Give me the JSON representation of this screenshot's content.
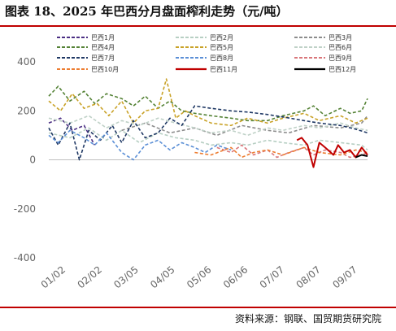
{
  "title": "图表 18、2025 年巴西分月盘面榨利走势（元/吨）",
  "source": "资料来源：钢联、国贸期货研究院",
  "chart_data": {
    "type": "line",
    "y_ticks": [
      400,
      200,
      0,
      -200,
      -400
    ],
    "ylim": [
      -400,
      400
    ],
    "x_ticks": [
      "01/02",
      "02/02",
      "03/05",
      "04/05",
      "05/06",
      "06/06",
      "07/07",
      "08/07",
      "09/07"
    ],
    "x_range": [
      "01/02",
      "09/30"
    ],
    "legend_placement": "top",
    "series": [
      {
        "name": "巴西1月",
        "color": "#4b2e83",
        "dash": "dash",
        "x": [
          "01/02",
          "01/12",
          "01/22",
          "02/01",
          "02/10"
        ],
        "values": [
          150,
          170,
          120,
          140,
          60
        ]
      },
      {
        "name": "巴西2月",
        "color": "#b7cfc3",
        "dash": "dash",
        "x": [
          "01/02",
          "01/20",
          "02/05",
          "02/20",
          "03/05",
          "03/20",
          "04/05",
          "04/20",
          "05/06",
          "05/20",
          "06/06",
          "06/20",
          "07/07",
          "07/20",
          "08/07",
          "08/20",
          "09/07",
          "09/25",
          "09/30"
        ],
        "values": [
          110,
          90,
          130,
          80,
          120,
          70,
          110,
          90,
          80,
          60,
          70,
          60,
          80,
          70,
          60,
          80,
          70,
          60,
          40
        ]
      },
      {
        "name": "巴西3月",
        "color": "#8c8c8c",
        "dash": "dash",
        "x": [
          "03/05",
          "03/25",
          "04/15",
          "05/06",
          "05/25",
          "06/15",
          "07/07",
          "07/25",
          "08/15",
          "09/07",
          "09/25",
          "09/30"
        ],
        "values": [
          120,
          150,
          110,
          130,
          100,
          140,
          120,
          110,
          140,
          130,
          150,
          180
        ]
      },
      {
        "name": "巴西4月",
        "color": "#548235",
        "dash": "dash",
        "x": [
          "01/02",
          "01/10",
          "01/20",
          "02/01",
          "02/10",
          "02/20",
          "03/05",
          "03/15",
          "03/25",
          "04/05",
          "04/15",
          "04/25",
          "05/06",
          "05/20",
          "06/06",
          "06/20",
          "07/07",
          "07/20",
          "08/07",
          "08/15",
          "08/25",
          "09/07",
          "09/15",
          "09/25",
          "09/30"
        ],
        "values": [
          260,
          300,
          240,
          280,
          230,
          270,
          250,
          220,
          260,
          210,
          240,
          200,
          190,
          180,
          170,
          160,
          160,
          180,
          200,
          220,
          180,
          210,
          190,
          200,
          250
        ]
      },
      {
        "name": "巴西5月",
        "color": "#c9a227",
        "dash": "dash",
        "x": [
          "01/02",
          "01/12",
          "01/22",
          "02/01",
          "02/12",
          "02/22",
          "03/05",
          "03/15",
          "03/25",
          "04/05",
          "04/12",
          "04/20",
          "04/28",
          "05/06",
          "05/20",
          "06/06",
          "06/20",
          "07/07",
          "07/20",
          "08/07",
          "08/20",
          "09/07",
          "09/20",
          "09/30"
        ],
        "values": [
          240,
          200,
          270,
          210,
          230,
          180,
          240,
          150,
          200,
          210,
          330,
          170,
          200,
          180,
          150,
          140,
          170,
          150,
          170,
          190,
          160,
          180,
          150,
          170
        ]
      },
      {
        "name": "巴西6月",
        "color": "#bfd1c7",
        "dash": "dash",
        "x": [
          "01/02",
          "01/20",
          "02/05",
          "02/20",
          "03/05",
          "03/20",
          "04/05",
          "04/20",
          "05/06",
          "05/20",
          "06/06",
          "06/20",
          "07/07",
          "07/20",
          "08/07",
          "08/20",
          "09/07",
          "09/20",
          "09/30"
        ],
        "values": [
          170,
          150,
          180,
          130,
          160,
          140,
          170,
          150,
          130,
          110,
          120,
          100,
          130,
          120,
          140,
          130,
          150,
          130,
          120
        ]
      },
      {
        "name": "巴西7月",
        "color": "#1f3864",
        "dash": "dash",
        "x": [
          "01/02",
          "01/10",
          "01/20",
          "01/28",
          "02/05",
          "02/15",
          "02/25",
          "03/05",
          "03/15",
          "03/25",
          "04/05",
          "04/15",
          "04/25",
          "05/06",
          "05/20",
          "06/06",
          "06/20",
          "07/07",
          "07/20",
          "08/07",
          "08/20",
          "09/07",
          "09/20",
          "09/30"
        ],
        "values": [
          130,
          60,
          150,
          0,
          120,
          80,
          140,
          70,
          160,
          90,
          110,
          170,
          140,
          220,
          210,
          200,
          195,
          185,
          175,
          160,
          150,
          140,
          125,
          110
        ]
      },
      {
        "name": "巴西8月",
        "color": "#5b8fd6",
        "dash": "dash",
        "x": [
          "01/02",
          "01/10",
          "01/20",
          "02/01",
          "02/10",
          "02/20",
          "03/05",
          "03/15",
          "03/25",
          "04/05",
          "04/15",
          "04/25",
          "05/06",
          "05/15",
          "05/25",
          "06/06"
        ],
        "values": [
          100,
          70,
          120,
          90,
          60,
          110,
          30,
          0,
          60,
          80,
          40,
          70,
          50,
          30,
          60,
          40
        ]
      },
      {
        "name": "巴西9月",
        "color": "#d9767a",
        "dash": "dash",
        "x": [
          "05/25",
          "06/06",
          "06/15",
          "06/25",
          "07/07",
          "07/15",
          "07/25",
          "08/07",
          "08/15",
          "08/25",
          "09/07",
          "09/15",
          "09/25",
          "09/30"
        ],
        "values": [
          50,
          30,
          60,
          20,
          40,
          10,
          30,
          50,
          20,
          40,
          30,
          10,
          20,
          30
        ]
      },
      {
        "name": "巴西10月",
        "color": "#ed7d31",
        "dash": "dash",
        "x": [
          "05/06",
          "05/20",
          "06/06",
          "06/15",
          "06/25",
          "07/07",
          "07/20",
          "08/07",
          "08/20",
          "09/07",
          "09/20",
          "09/30"
        ],
        "values": [
          30,
          20,
          50,
          10,
          30,
          40,
          20,
          50,
          30,
          20,
          40,
          30
        ]
      },
      {
        "name": "巴西11月",
        "color": "#c00000",
        "dash": "solid",
        "x": [
          "08/01",
          "08/05",
          "08/10",
          "08/15",
          "08/20",
          "08/25",
          "09/01",
          "09/05",
          "09/10",
          "09/15",
          "09/20",
          "09/25",
          "09/30"
        ],
        "values": [
          80,
          90,
          60,
          -30,
          70,
          50,
          20,
          60,
          30,
          40,
          10,
          50,
          20
        ]
      },
      {
        "name": "巴西12月",
        "color": "#000000",
        "dash": "solid",
        "x": [
          "09/20",
          "09/25",
          "09/30"
        ],
        "values": [
          10,
          20,
          15
        ]
      }
    ]
  }
}
